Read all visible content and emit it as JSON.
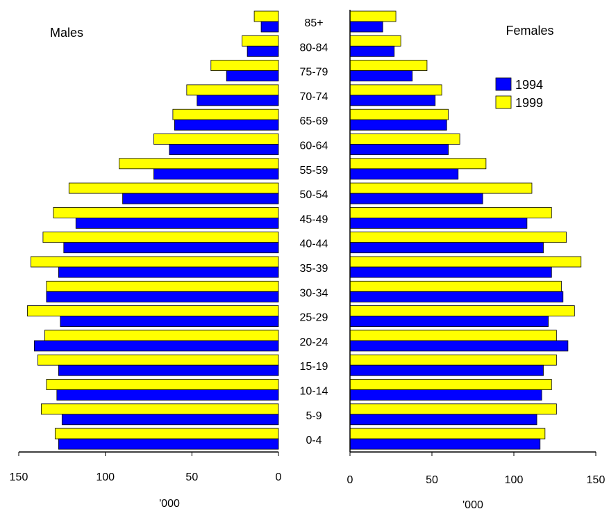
{
  "chart_data": {
    "type": "bar",
    "categories": [
      "85+",
      "80-84",
      "75-79",
      "70-74",
      "65-69",
      "60-64",
      "55-59",
      "50-54",
      "45-49",
      "40-44",
      "35-39",
      "30-34",
      "25-29",
      "20-24",
      "15-19",
      "10-14",
      "5-9",
      "0-4"
    ],
    "left_title": "Males",
    "right_title": "Females",
    "xlabel": "'000",
    "xlim": [
      0,
      150
    ],
    "xticks": [
      0,
      50,
      100,
      150
    ],
    "legend_position": "top-right",
    "series": [
      {
        "name": "1994",
        "color": "#0000ff",
        "males": [
          10,
          18,
          30,
          47,
          60,
          63,
          72,
          90,
          117,
          124,
          127,
          134,
          126,
          141,
          127,
          128,
          125,
          127
        ],
        "females": [
          20,
          27,
          38,
          52,
          59,
          60,
          66,
          81,
          108,
          118,
          123,
          130,
          121,
          133,
          118,
          117,
          114,
          116
        ]
      },
      {
        "name": "1999",
        "color": "#ffff00",
        "males": [
          14,
          21,
          39,
          53,
          61,
          72,
          92,
          121,
          130,
          136,
          143,
          134,
          145,
          135,
          139,
          134,
          137,
          129
        ],
        "females": [
          28,
          31,
          47,
          56,
          60,
          67,
          83,
          111,
          123,
          132,
          141,
          129,
          137,
          126,
          126,
          123,
          126,
          119
        ]
      }
    ]
  }
}
